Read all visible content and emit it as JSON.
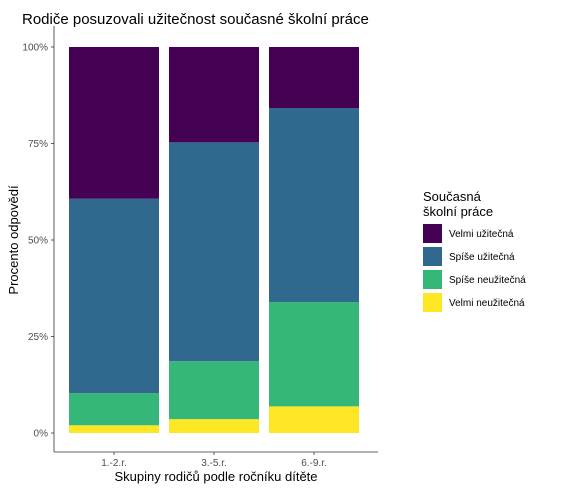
{
  "chart_data": {
    "type": "bar",
    "stacked": true,
    "title": "Rodiče posuzovali užitečnost současné školní práce",
    "xlabel": "Skupiny rodičů podle ročníku dítěte",
    "ylabel": "Procento odpovědí",
    "categories": [
      "1.-2.r.",
      "3.-5.r.",
      "6.-9.r."
    ],
    "ylim": [
      0,
      100
    ],
    "yticks": [
      "0%",
      "25%",
      "50%",
      "75%",
      "100%"
    ],
    "ytick_values": [
      0,
      25,
      50,
      75,
      100
    ],
    "grid": false,
    "legend": {
      "title_line1": "Současná",
      "title_line2": "školní práce",
      "placement": "right"
    },
    "series": [
      {
        "name": "Velmi užitečná",
        "color": "#440154",
        "values": [
          39.3,
          24.7,
          15.8
        ]
      },
      {
        "name": "Spíše užitečná",
        "color": "#31688e",
        "values": [
          50.4,
          56.7,
          50.3
        ]
      },
      {
        "name": "Spíše neužitečná",
        "color": "#35b779",
        "values": [
          8.3,
          15.0,
          27.0
        ]
      },
      {
        "name": "Velmi neužitečná",
        "color": "#fde725",
        "values": [
          2.0,
          3.6,
          6.9
        ]
      }
    ]
  }
}
